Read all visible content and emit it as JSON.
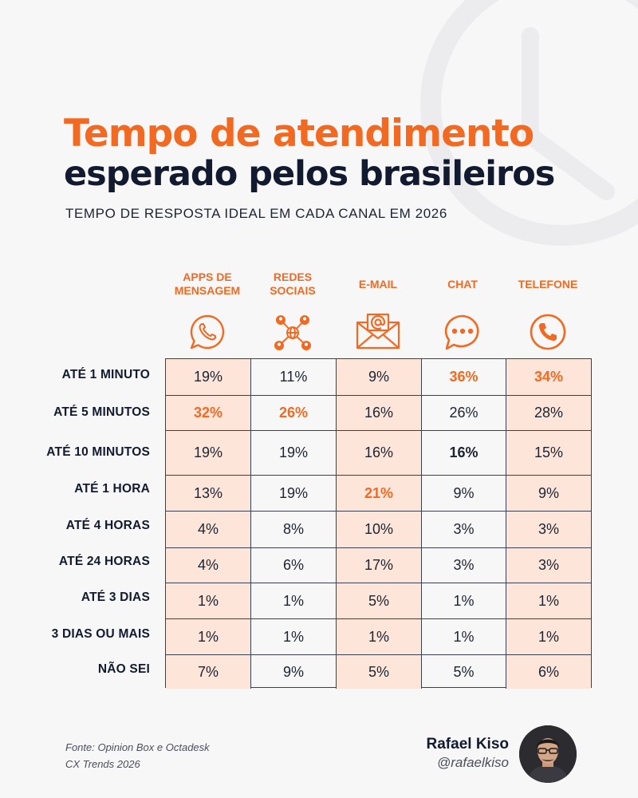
{
  "header": {
    "title_line1": "Tempo de atendimento",
    "title_line2": "esperado pelos brasileiros",
    "subtitle": "TEMPO DE RESPOSTA IDEAL EM CADA CANAL EM 2026"
  },
  "colors": {
    "accent": "#f26a22",
    "dark": "#111a2e",
    "highlight_bg": "#fde5d9"
  },
  "columns": [
    {
      "label_line1": "APPS DE",
      "label_line2": "MENSAGEM",
      "icon": "whatsapp-icon"
    },
    {
      "label_line1": "REDES",
      "label_line2": "SOCIAIS",
      "icon": "network-icon"
    },
    {
      "label_line1": "E-MAIL",
      "label_line2": "",
      "icon": "email-icon"
    },
    {
      "label_line1": "CHAT",
      "label_line2": "",
      "icon": "chat-bubble-icon"
    },
    {
      "label_line1": "TELEFONE",
      "label_line2": "",
      "icon": "phone-icon"
    }
  ],
  "rows": [
    {
      "label": "ATÉ 1 MINUTO",
      "values": [
        "19%",
        "11%",
        "9%",
        "36%",
        "34%"
      ]
    },
    {
      "label": "ATÉ 5 MINUTOS",
      "values": [
        "32%",
        "26%",
        "16%",
        "26%",
        "28%"
      ]
    },
    {
      "label": "ATÉ 10 MINUTOS",
      "values": [
        "19%",
        "19%",
        "16%",
        "16%",
        "15%"
      ]
    },
    {
      "label": "ATÉ 1 HORA",
      "values": [
        "13%",
        "19%",
        "21%",
        "9%",
        "9%"
      ]
    },
    {
      "label": "ATÉ 4 HORAS",
      "values": [
        "4%",
        "8%",
        "10%",
        "3%",
        "3%"
      ]
    },
    {
      "label": "ATÉ 24 HORAS",
      "values": [
        "4%",
        "6%",
        "17%",
        "3%",
        "3%"
      ]
    },
    {
      "label": "ATÉ 3 DIAS",
      "values": [
        "1%",
        "1%",
        "5%",
        "1%",
        "1%"
      ]
    },
    {
      "label": "3 DIAS OU MAIS",
      "values": [
        "1%",
        "1%",
        "1%",
        "1%",
        "1%"
      ]
    },
    {
      "label": "NÃO SEI",
      "values": [
        "7%",
        "9%",
        "5%",
        "5%",
        "6%"
      ]
    }
  ],
  "footer": {
    "source_line1": "Fonte: Opinion Box e Octadesk",
    "source_line2": "CX Trends 2026",
    "author_name": "Rafael Kiso",
    "author_handle": "@rafaelkiso"
  }
}
